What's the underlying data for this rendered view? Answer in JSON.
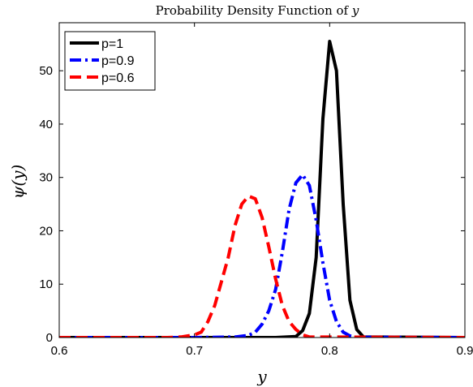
{
  "chart_data": {
    "type": "line",
    "title_prefix": "Probability Density Function of ",
    "title_var": "y",
    "xlabel": "y",
    "ylabel": "ψ(y)",
    "xlim": [
      0.6,
      0.9
    ],
    "ylim": [
      0,
      59
    ],
    "xticks": [
      0.6,
      0.7,
      0.8,
      0.9
    ],
    "xtick_labels": [
      "0.6",
      "0.7",
      "0.8",
      "0.9"
    ],
    "yticks": [
      0,
      10,
      20,
      30,
      40,
      50
    ],
    "ytick_labels": [
      "0",
      "10",
      "20",
      "30",
      "40",
      "50"
    ],
    "grid": false,
    "legend_position": "top-left",
    "series": [
      {
        "name": "p=1",
        "color": "#000000",
        "style": "solid",
        "x": [
          0.6,
          0.76,
          0.775,
          0.78,
          0.785,
          0.79,
          0.795,
          0.8,
          0.805,
          0.81,
          0.815,
          0.82,
          0.825,
          0.9
        ],
        "y": [
          0,
          0,
          0.2,
          1.3,
          4.5,
          15,
          41,
          55.5,
          50,
          25,
          7,
          1.5,
          0.1,
          0
        ]
      },
      {
        "name": "p=0.9",
        "color": "#0000ff",
        "style": "dashdot",
        "x": [
          0.6,
          0.7,
          0.73,
          0.74,
          0.745,
          0.75,
          0.755,
          0.76,
          0.765,
          0.77,
          0.775,
          0.78,
          0.785,
          0.79,
          0.795,
          0.8,
          0.805,
          0.81,
          0.815,
          0.82,
          0.9
        ],
        "y": [
          0,
          0,
          0.1,
          0.4,
          1,
          2.5,
          5,
          9,
          16,
          24,
          29,
          30.5,
          28.5,
          22,
          14,
          7,
          3,
          1,
          0.3,
          0.05,
          0
        ]
      },
      {
        "name": "p=0.6",
        "color": "#ff0000",
        "style": "dashed",
        "x": [
          0.6,
          0.68,
          0.69,
          0.7,
          0.705,
          0.71,
          0.715,
          0.72,
          0.725,
          0.73,
          0.735,
          0.74,
          0.745,
          0.75,
          0.755,
          0.76,
          0.765,
          0.77,
          0.775,
          0.78,
          0.785,
          0.9
        ],
        "y": [
          0,
          0,
          0.1,
          0.5,
          1,
          3,
          6,
          10.5,
          15,
          21,
          25,
          26.5,
          26,
          22.5,
          17,
          11,
          6,
          3,
          1.5,
          0.5,
          0.1,
          0
        ]
      }
    ]
  }
}
